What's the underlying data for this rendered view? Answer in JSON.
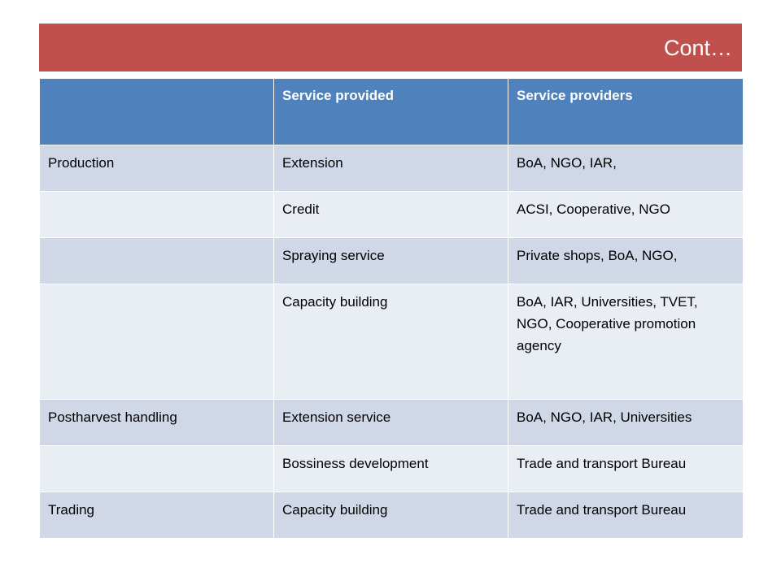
{
  "title": "Cont…",
  "table": {
    "headers": [
      "",
      "Service provided",
      "Service providers"
    ],
    "rows": [
      {
        "stage": "Production",
        "service": "Extension",
        "providers": "BoA, NGO, IAR,"
      },
      {
        "stage": "",
        "service": "Credit",
        "providers": "ACSI, Cooperative, NGO"
      },
      {
        "stage": "",
        "service": "Spraying service",
        "providers": "Private shops, BoA, NGO,"
      },
      {
        "stage": "",
        "service": "Capacity building",
        "providers": "BoA, IAR, Universities, TVET, NGO, Cooperative promotion agency"
      },
      {
        "stage": "Postharvest handling",
        "service": "Extension service",
        "providers": "BoA, NGO, IAR, Universities"
      },
      {
        "stage": "",
        "service": "Bossiness development",
        "providers": "Trade and transport Bureau"
      },
      {
        "stage": "Trading",
        "service": "Capacity building",
        "providers": "Trade and transport Bureau"
      }
    ]
  },
  "colors": {
    "title_bar": "#c0504d",
    "header": "#4f81bd",
    "row_odd": "#d0d8e8",
    "row_even": "#e9edf4"
  }
}
